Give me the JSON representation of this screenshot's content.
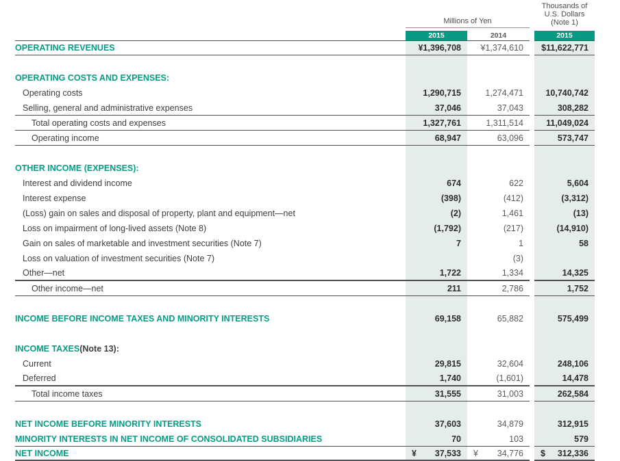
{
  "colors": {
    "accent_teal": "#079a82",
    "band_light_teal": "#e5ece9",
    "rule_dark_gray": "#4e4e50",
    "label_gray": "#3d3d3f",
    "secondary_gray": "#5a5a5d"
  },
  "header": {
    "yen_group_label": "Millions of Yen",
    "usd_group_label_lines": [
      "Thousands of",
      "U.S. Dollars",
      "(Note 1)"
    ],
    "col_year_2015_yen": "2015",
    "col_year_2014_yen": "2014",
    "col_year_2015_usd": "2015"
  },
  "rows": [
    {
      "label": "OPERATING REVENUES",
      "section": true,
      "indent": 0,
      "y15": "¥1,396,708",
      "y14": "¥1,374,610",
      "usd": "$11,622,771",
      "top": "thin",
      "bottom": "thin"
    },
    {
      "blank": true
    },
    {
      "label": "OPERATING COSTS AND EXPENSES:",
      "section": true,
      "indent": 0,
      "y15": "",
      "y14": "",
      "usd": ""
    },
    {
      "label": "Operating costs",
      "indent": 1,
      "y15": "1,290,715",
      "y14": "1,274,471",
      "usd": "10,740,742"
    },
    {
      "label": "Selling, general and administrative expenses",
      "indent": 1,
      "y15": "37,046",
      "y14": "37,043",
      "usd": "308,282",
      "bottom": "thin"
    },
    {
      "label": "Total operating costs and expenses",
      "indent": 2,
      "y15": "1,327,761",
      "y14": "1,311,514",
      "usd": "11,049,024",
      "bottom": "thin"
    },
    {
      "label": "Operating income",
      "indent": 2,
      "y15": "68,947",
      "y14": "63,096",
      "usd": "573,747",
      "bottom": "thin"
    },
    {
      "blank": true
    },
    {
      "label": "OTHER INCOME (EXPENSES):",
      "section": true,
      "indent": 0,
      "y15": "",
      "y14": "",
      "usd": ""
    },
    {
      "label": "Interest and dividend income",
      "indent": 1,
      "y15": "674",
      "y14": "622",
      "usd": "5,604"
    },
    {
      "label": "Interest expense",
      "indent": 1,
      "y15": "(398)",
      "y14": "(412)",
      "usd": "(3,312)"
    },
    {
      "label": "(Loss) gain on sales and disposal of property, plant and equipment—net",
      "indent": 1,
      "y15": "(2)",
      "y14": "1,461",
      "usd": "(13)"
    },
    {
      "label": "Loss on impairment of long-lived assets (Note 8)",
      "indent": 1,
      "y15": "(1,792)",
      "y14": "(217)",
      "usd": "(14,910)"
    },
    {
      "label": "Gain on sales of marketable and investment securities (Note 7)",
      "indent": 1,
      "y15": "7",
      "y14": "1",
      "usd": "58"
    },
    {
      "label": "Loss on valuation of investment securities (Note 7)",
      "indent": 1,
      "y15": "",
      "y14": "(3)",
      "usd": ""
    },
    {
      "label": "Other—net",
      "indent": 1,
      "y15": "1,722",
      "y14": "1,334",
      "usd": "14,325",
      "bottom": "thick"
    },
    {
      "label": "Other income—net",
      "indent": 2,
      "y15": "211",
      "y14": "2,786",
      "usd": "1,752",
      "bottom": "thin"
    },
    {
      "blank": true
    },
    {
      "label": "INCOME BEFORE INCOME TAXES AND MINORITY INTERESTS",
      "section": true,
      "indent": 0,
      "y15": "69,158",
      "y14": "65,882",
      "usd": "575,499"
    },
    {
      "blank": true
    },
    {
      "label": "INCOME TAXES",
      "note": " (Note 13):",
      "section": true,
      "indent": 0,
      "y15": "",
      "y14": "",
      "usd": ""
    },
    {
      "label": "Current",
      "indent": 1,
      "y15": "29,815",
      "y14": "32,604",
      "usd": "248,106"
    },
    {
      "label": "Deferred",
      "indent": 1,
      "y15": "1,740",
      "y14": "(1,601)",
      "usd": "14,478",
      "bottom": "thick"
    },
    {
      "label": "Total income taxes",
      "indent": 2,
      "y15": "31,555",
      "y14": "31,003",
      "usd": "262,584",
      "bottom": "thin"
    },
    {
      "blank": true
    },
    {
      "label": "NET INCOME BEFORE MINORITY INTERESTS",
      "section": true,
      "indent": 0,
      "y15": "37,603",
      "y14": "34,879",
      "usd": "312,915"
    },
    {
      "label": "MINORITY INTERESTS IN NET INCOME OF CONSOLIDATED SUBSIDIARIES",
      "section": true,
      "indent": 0,
      "y15": "70",
      "y14": "103",
      "usd": "579",
      "bottom": "thin"
    },
    {
      "label": "NET INCOME",
      "section": true,
      "indent": 0,
      "sym15": "¥",
      "sym14": "¥",
      "symUsd": "$",
      "y15": "37,533",
      "y14": "34,776",
      "usd": "312,336",
      "bottom": "final"
    },
    {
      "blank": true,
      "stub": true
    }
  ]
}
